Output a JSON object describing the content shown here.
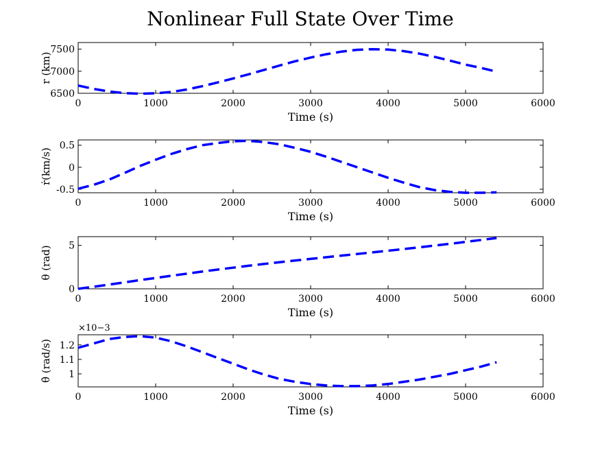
{
  "figure": {
    "title": "Nonlinear Full State Over Time"
  },
  "chart_data": [
    {
      "type": "line",
      "xlabel": "Time (s)",
      "ylabel": "r (km)",
      "xlim": [
        0,
        6000
      ],
      "ylim": [
        6500,
        7650
      ],
      "xticks": [
        0,
        1000,
        2000,
        3000,
        4000,
        5000,
        6000
      ],
      "yticks": [
        6500,
        7000,
        7500
      ],
      "ytick_labels": [
        "6500",
        "7000",
        "7500"
      ],
      "exponent_label": "",
      "line_style": "dashed",
      "color": "#0000ff",
      "series": [
        {
          "x": [
            0,
            200,
            400,
            600,
            800,
            1000,
            1200,
            1400,
            1600,
            1800,
            2000,
            2200,
            2400,
            2600,
            2800,
            3000,
            3200,
            3400,
            3600,
            3800,
            4000,
            4200,
            4400,
            4600,
            4800,
            5000,
            5200,
            5400
          ],
          "y": [
            6675,
            6600,
            6540,
            6505,
            6490,
            6500,
            6530,
            6585,
            6660,
            6745,
            6835,
            6930,
            7030,
            7130,
            7225,
            7310,
            7385,
            7445,
            7485,
            7500,
            7490,
            7455,
            7400,
            7325,
            7240,
            7150,
            7075,
            6990
          ]
        }
      ]
    },
    {
      "type": "line",
      "xlabel": "Time (s)",
      "ylabel": "ṙ(km/s)",
      "xlim": [
        0,
        6000
      ],
      "ylim": [
        -0.58,
        0.62
      ],
      "xticks": [
        0,
        1000,
        2000,
        3000,
        4000,
        5000,
        6000
      ],
      "yticks": [
        -0.5,
        0,
        0.5
      ],
      "ytick_labels": [
        "-0.5",
        "0",
        "0.5"
      ],
      "exponent_label": "",
      "line_style": "dashed",
      "color": "#0000ff",
      "series": [
        {
          "x": [
            0,
            200,
            400,
            600,
            800,
            1000,
            1200,
            1400,
            1600,
            1800,
            2000,
            2200,
            2400,
            2600,
            2800,
            3000,
            3200,
            3400,
            3600,
            3800,
            4000,
            4200,
            4400,
            4600,
            4800,
            5000,
            5200,
            5400
          ],
          "y": [
            -0.49,
            -0.4,
            -0.28,
            -0.13,
            0.03,
            0.17,
            0.3,
            0.41,
            0.5,
            0.55,
            0.59,
            0.6,
            0.57,
            0.52,
            0.44,
            0.35,
            0.24,
            0.12,
            0.0,
            -0.12,
            -0.24,
            -0.35,
            -0.45,
            -0.52,
            -0.56,
            -0.58,
            -0.58,
            -0.57
          ]
        }
      ]
    },
    {
      "type": "line",
      "xlabel": "Time (s)",
      "ylabel": "θ (rad)",
      "xlim": [
        0,
        6000
      ],
      "ylim": [
        0,
        6
      ],
      "xticks": [
        0,
        1000,
        2000,
        3000,
        4000,
        5000,
        6000
      ],
      "yticks": [
        0,
        5
      ],
      "ytick_labels": [
        "0",
        "5"
      ],
      "exponent_label": "",
      "line_style": "dashed",
      "color": "#0000ff",
      "series": [
        {
          "x": [
            0,
            200,
            400,
            600,
            800,
            1000,
            1200,
            1400,
            1600,
            1800,
            2000,
            2200,
            2400,
            2600,
            2800,
            3000,
            3200,
            3400,
            3600,
            3800,
            4000,
            4200,
            4400,
            4600,
            4800,
            5000,
            5200,
            5400
          ],
          "y": [
            0.0,
            0.24,
            0.49,
            0.74,
            1.0,
            1.25,
            1.5,
            1.74,
            1.98,
            2.21,
            2.43,
            2.65,
            2.86,
            3.06,
            3.25,
            3.44,
            3.63,
            3.82,
            4.0,
            4.19,
            4.38,
            4.57,
            4.77,
            4.97,
            5.18,
            5.4,
            5.62,
            5.84
          ]
        }
      ]
    },
    {
      "type": "line",
      "xlabel": "Time (s)",
      "ylabel": "θ̇ (rad/s)",
      "xlim": [
        0,
        6000
      ],
      "ylim": [
        0.91,
        1.27
      ],
      "xticks": [
        0,
        1000,
        2000,
        3000,
        4000,
        5000,
        6000
      ],
      "yticks": [
        1.0,
        1.1,
        1.2
      ],
      "ytick_labels": [
        "1",
        "1.1",
        "1.2"
      ],
      "exponent_label": "×10−3",
      "line_style": "dashed",
      "color": "#0000ff",
      "series": [
        {
          "x": [
            0,
            200,
            400,
            600,
            800,
            1000,
            1200,
            1400,
            1600,
            1800,
            2000,
            2200,
            2400,
            2600,
            2800,
            3000,
            3200,
            3400,
            3600,
            3800,
            4000,
            4200,
            4400,
            4600,
            4800,
            5000,
            5200,
            5400
          ],
          "y": [
            1.18,
            1.21,
            1.24,
            1.255,
            1.26,
            1.25,
            1.225,
            1.19,
            1.15,
            1.11,
            1.07,
            1.03,
            0.995,
            0.965,
            0.945,
            0.93,
            0.92,
            0.915,
            0.915,
            0.92,
            0.93,
            0.945,
            0.96,
            0.98,
            1.0,
            1.025,
            1.05,
            1.08
          ]
        }
      ]
    }
  ]
}
